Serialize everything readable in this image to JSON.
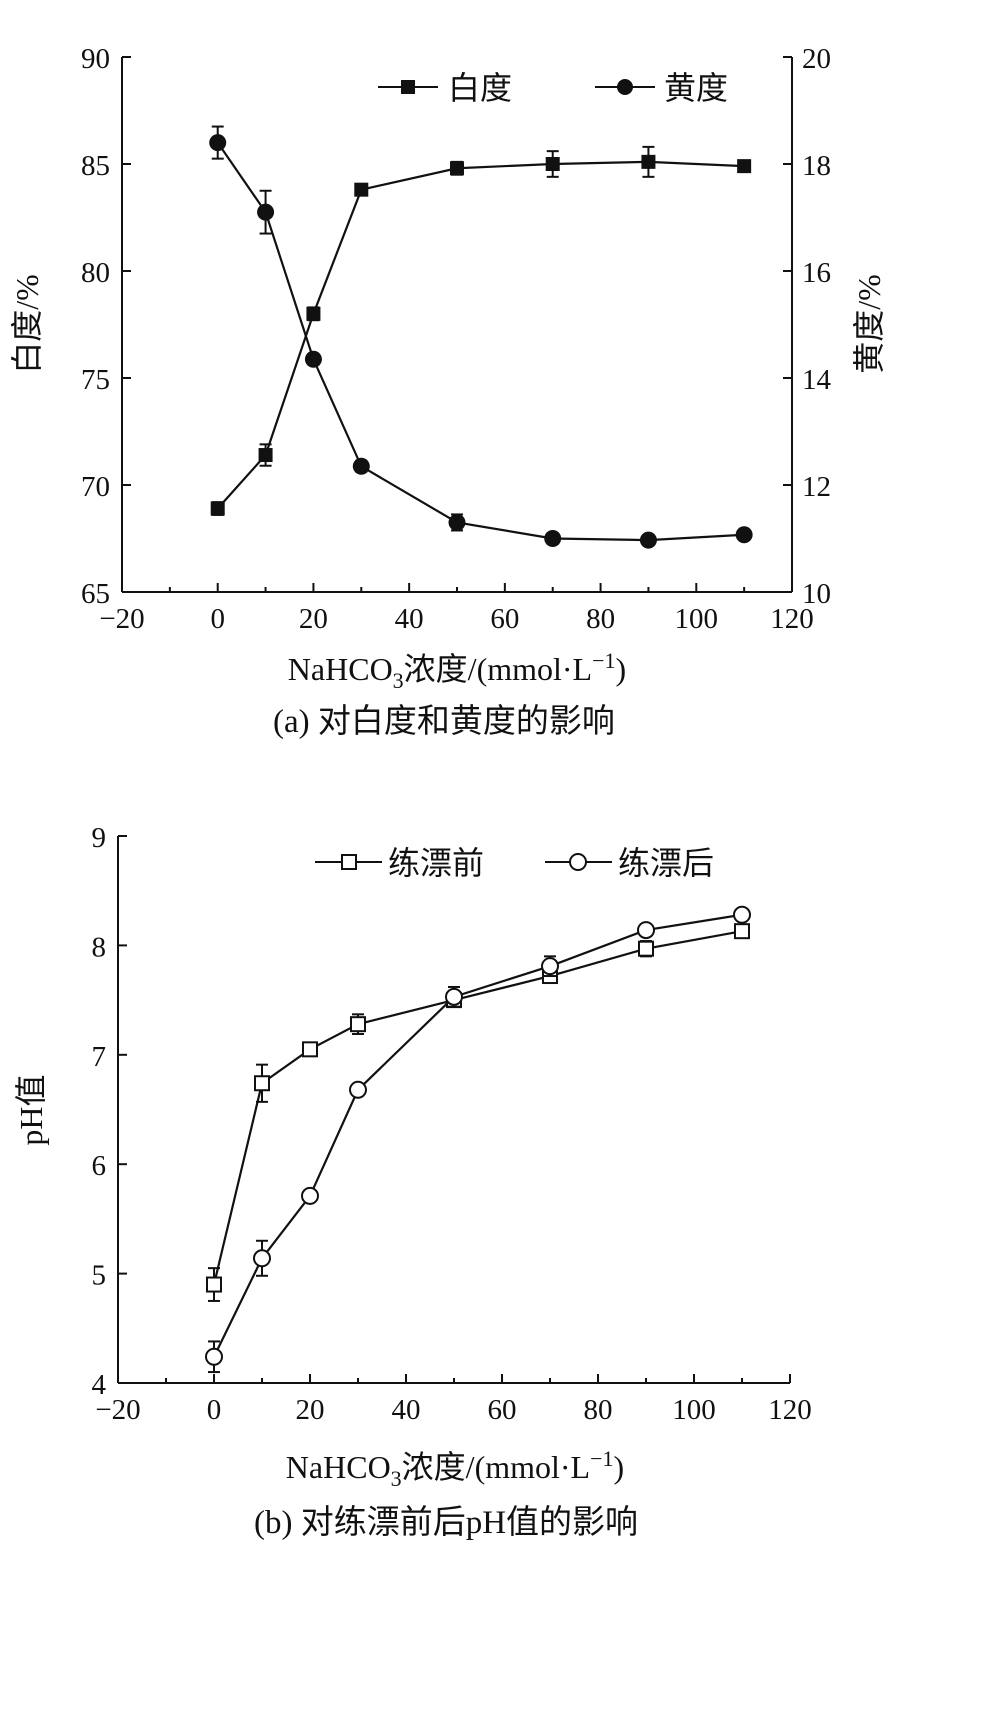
{
  "chart_data": [
    {
      "type": "line",
      "x": [
        0,
        10,
        20,
        30,
        50,
        70,
        90,
        110
      ],
      "xlabel": "NaHCO",
      "xlabel_sub": "3",
      "xlabel_tail": "浓度/(mmol·L",
      "xlabel_sup": "−1",
      "xlabel_close": ")",
      "xlim": [
        -20,
        120
      ],
      "xticks": [
        "−20",
        "0",
        "20",
        "40",
        "60",
        "80",
        "100",
        "120"
      ],
      "ylabel": "白度/%",
      "ylim": [
        65,
        90
      ],
      "yticks": [
        "65",
        "70",
        "75",
        "80",
        "85",
        "90"
      ],
      "y2label": "黄度/%",
      "y2lim": [
        10,
        20
      ],
      "y2ticks": [
        "10",
        "12",
        "14",
        "16",
        "18",
        "20"
      ],
      "caption": "(a) 对白度和黄度的影响",
      "legend_position": "top-right",
      "series": [
        {
          "name": "白度",
          "axis": "left",
          "marker": "filled-square",
          "values": [
            68.9,
            71.4,
            78.0,
            83.8,
            84.8,
            85.0,
            85.1,
            84.9
          ],
          "errors": [
            0.3,
            0.5,
            0.3,
            0.2,
            0.3,
            0.6,
            0.7,
            0.2
          ]
        },
        {
          "name": "黄度",
          "axis": "right",
          "marker": "filled-circle",
          "values": [
            18.4,
            17.1,
            14.35,
            12.35,
            11.3,
            11.0,
            10.97,
            11.07
          ],
          "errors": [
            0.3,
            0.4,
            0.1,
            0.1,
            0.15,
            0.1,
            0.05,
            0.08
          ]
        }
      ]
    },
    {
      "type": "line",
      "x": [
        0,
        10,
        20,
        30,
        50,
        70,
        90,
        110
      ],
      "xlabel": "NaHCO",
      "xlabel_sub": "3",
      "xlabel_tail": "浓度/(mmol·L",
      "xlabel_sup": "−1",
      "xlabel_close": ")",
      "xlim": [
        -20,
        120
      ],
      "xticks": [
        "−20",
        "0",
        "20",
        "40",
        "60",
        "80",
        "100",
        "120"
      ],
      "ylabel": "pH值",
      "ylim": [
        4,
        9
      ],
      "yticks": [
        "4",
        "5",
        "6",
        "7",
        "8",
        "9"
      ],
      "caption": "(b) 对练漂前后pH值的影响",
      "legend_position": "top-right",
      "series": [
        {
          "name": "练漂前",
          "marker": "open-square",
          "values": [
            4.9,
            6.74,
            7.05,
            7.28,
            7.5,
            7.72,
            7.97,
            8.13
          ],
          "errors": [
            0.15,
            0.17,
            0.02,
            0.09,
            0.05,
            0.06,
            0.07,
            0.03
          ]
        },
        {
          "name": "练漂后",
          "marker": "open-circle",
          "values": [
            4.24,
            5.14,
            5.71,
            6.68,
            7.53,
            7.81,
            8.14,
            8.28
          ],
          "errors": [
            0.14,
            0.16,
            0.02,
            0.04,
            0.09,
            0.09,
            0.03,
            0.03
          ]
        }
      ]
    }
  ]
}
